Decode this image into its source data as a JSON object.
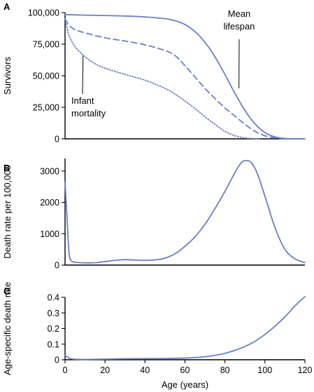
{
  "chart_data": [
    {
      "panel": "A",
      "type": "line",
      "ylabel": "Survivors",
      "xlim": [
        0,
        120
      ],
      "ylim": [
        0,
        100000
      ],
      "xticks": [],
      "yticks": [
        0,
        25000,
        50000,
        75000,
        100000
      ],
      "ytick_labels": [
        "0",
        "25,000",
        "50,000",
        "75,000",
        "100,000"
      ],
      "series_color": "#6a7fc9",
      "series": [
        {
          "style": "solid",
          "x": [
            0,
            10,
            20,
            30,
            40,
            50,
            55,
            60,
            65,
            70,
            75,
            80,
            85,
            90,
            95,
            100,
            105,
            110,
            115,
            120
          ],
          "y": [
            98500,
            98000,
            97700,
            97300,
            96600,
            95200,
            93600,
            90500,
            85000,
            76500,
            65000,
            51000,
            36000,
            22500,
            12000,
            5000,
            1500,
            300,
            0,
            0
          ]
        },
        {
          "style": "dashed",
          "x": [
            0,
            2,
            5,
            10,
            20,
            30,
            40,
            50,
            55,
            60,
            65,
            70,
            75,
            80,
            85,
            90,
            95,
            100,
            105,
            110,
            115
          ],
          "y": [
            95000,
            90000,
            86500,
            84000,
            80000,
            77500,
            74500,
            70000,
            66000,
            58000,
            49000,
            40000,
            32000,
            24500,
            18000,
            11500,
            6000,
            2500,
            700,
            100,
            0
          ]
        },
        {
          "style": "dotted",
          "x": [
            0,
            2,
            5,
            8,
            10,
            15,
            20,
            30,
            40,
            50,
            55,
            60,
            65,
            70,
            75,
            80,
            85,
            90,
            95,
            98
          ],
          "y": [
            95000,
            82000,
            73000,
            68000,
            65000,
            59500,
            56000,
            51000,
            46500,
            40000,
            35500,
            30000,
            24000,
            17500,
            11500,
            6000,
            2500,
            700,
            100,
            0
          ]
        }
      ],
      "annotations": [
        {
          "lines": [
            "Mean",
            "lifespan"
          ],
          "target": {
            "x": 87,
            "y": 40000
          }
        },
        {
          "lines": [
            "Infant",
            "mortality"
          ],
          "target": {
            "x": 9,
            "y": 66000
          }
        }
      ]
    },
    {
      "panel": "B",
      "type": "line",
      "ylabel": "Death rate per 100,000",
      "xlim": [
        0,
        120
      ],
      "ylim": [
        0,
        3400
      ],
      "xticks": [],
      "yticks": [
        0,
        1000,
        2000,
        3000
      ],
      "ytick_labels": [
        "0",
        "1000",
        "2000",
        "3000"
      ],
      "series_color": "#6a7fc9",
      "series": [
        {
          "style": "solid",
          "x": [
            0,
            1,
            2,
            3,
            5,
            10,
            15,
            20,
            25,
            30,
            35,
            40,
            45,
            50,
            55,
            60,
            65,
            70,
            75,
            80,
            85,
            88,
            90,
            93,
            96,
            100,
            105,
            110,
            115,
            120
          ],
          "y": [
            2650,
            1500,
            400,
            150,
            90,
            70,
            75,
            110,
            150,
            175,
            160,
            150,
            165,
            220,
            360,
            600,
            900,
            1300,
            1800,
            2350,
            2950,
            3250,
            3330,
            3280,
            2950,
            2200,
            1200,
            500,
            200,
            80
          ]
        }
      ]
    },
    {
      "panel": "C",
      "type": "line",
      "ylabel": "Age-specific death rate",
      "xlabel": "Age (years)",
      "xlim": [
        0,
        120
      ],
      "ylim": [
        0,
        0.4
      ],
      "xticks": [
        0,
        20,
        40,
        60,
        80,
        100,
        120
      ],
      "xtick_labels": [
        "0",
        "20",
        "40",
        "60",
        "80",
        "100",
        "120"
      ],
      "yticks": [
        0,
        0.1,
        0.2,
        0.3,
        0.4
      ],
      "ytick_labels": [
        "0",
        "0.1",
        "0.2",
        "0.3",
        "0.4"
      ],
      "series_color": "#6a7fc9",
      "series": [
        {
          "style": "solid",
          "x": [
            0,
            1,
            2,
            3,
            5,
            10,
            20,
            30,
            40,
            50,
            60,
            65,
            70,
            75,
            80,
            85,
            90,
            95,
            100,
            105,
            110,
            115,
            120
          ],
          "y": [
            0.027,
            0.02,
            0.012,
            0.006,
            0.003,
            0.002,
            0.004,
            0.006,
            0.007,
            0.008,
            0.011,
            0.014,
            0.019,
            0.028,
            0.041,
            0.06,
            0.085,
            0.118,
            0.162,
            0.215,
            0.275,
            0.345,
            0.405
          ]
        }
      ]
    }
  ]
}
